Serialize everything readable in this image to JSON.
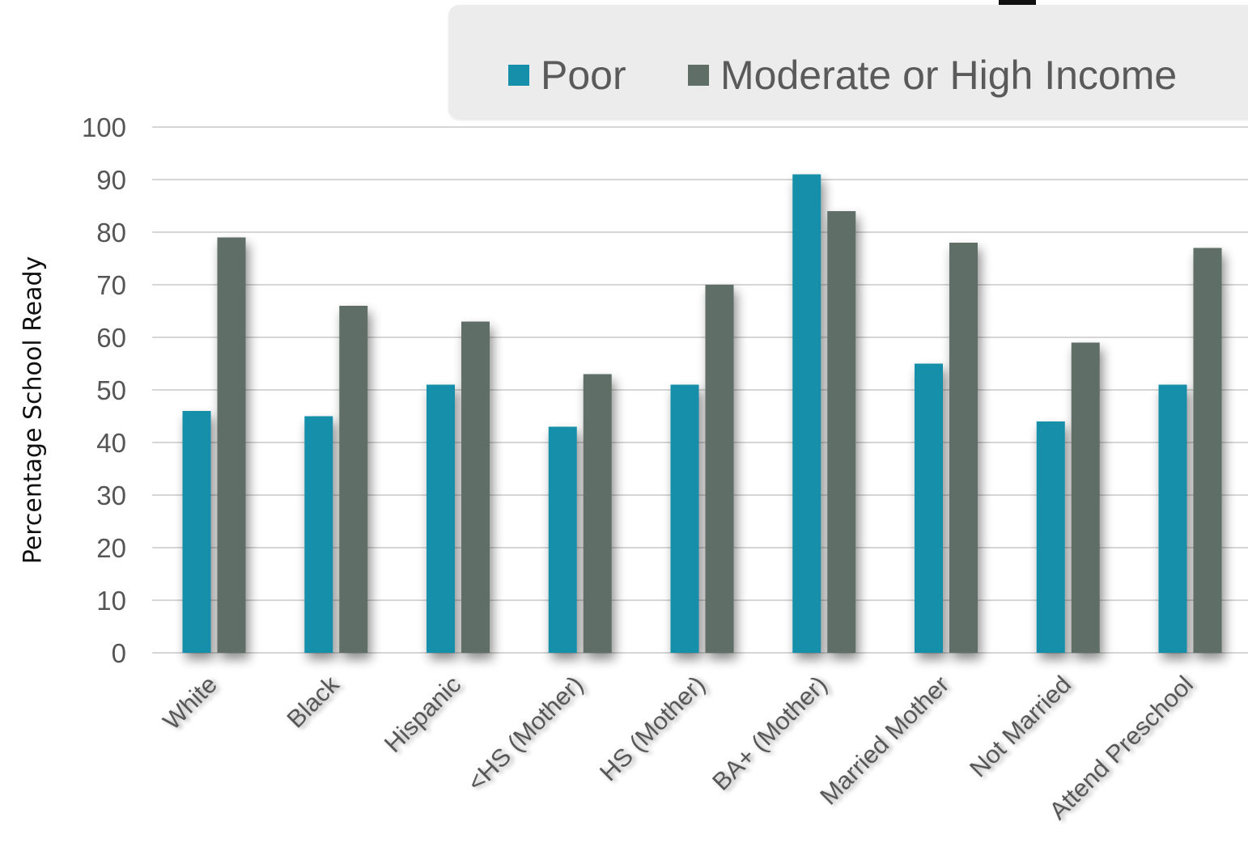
{
  "chart_data": {
    "type": "bar",
    "title": "",
    "xlabel": "",
    "ylabel": "Percentage School Ready",
    "ylim": [
      0,
      100
    ],
    "yticks": [
      0,
      10,
      20,
      30,
      40,
      50,
      60,
      70,
      80,
      90,
      100
    ],
    "grid": true,
    "legend_position": "top-right",
    "categories": [
      "White",
      "Black",
      "Hispanic",
      "<HS (Mother)",
      "HS (Mother)",
      "BA+ (Mother)",
      "Married Mother",
      "Not Married",
      "Attend Preschool"
    ],
    "series": [
      {
        "name": "Poor",
        "color": "#168faa",
        "values": [
          46,
          45,
          51,
          43,
          51,
          91,
          55,
          44,
          51
        ]
      },
      {
        "name": "Moderate or High Income",
        "color": "#5f6e66",
        "values": [
          79,
          66,
          63,
          53,
          70,
          84,
          78,
          59,
          77
        ]
      }
    ]
  }
}
